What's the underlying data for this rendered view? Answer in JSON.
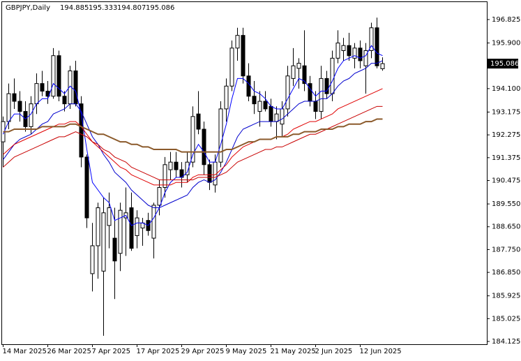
{
  "chart_data": {
    "type": "candlestick",
    "title": "GBPJPY,Daily",
    "categories": [
      "14 Mar 2025",
      null,
      null,
      null,
      null,
      null,
      null,
      null,
      "26 Mar 2025",
      null,
      null,
      null,
      null,
      null,
      null,
      null,
      "7 Apr 2025",
      null,
      null,
      null,
      null,
      null,
      null,
      null,
      "17 Apr 2025",
      null,
      null,
      null,
      null,
      null,
      null,
      null,
      "29 Apr 2025",
      null,
      null,
      null,
      null,
      null,
      null,
      null,
      "9 May 2025",
      null,
      null,
      null,
      null,
      null,
      null,
      null,
      "21 May 2025",
      null,
      null,
      null,
      null,
      null,
      null,
      null,
      "2 Jun 2025",
      null,
      null,
      null,
      null,
      null,
      null,
      null,
      "12 Jun 2025",
      null,
      null,
      null,
      null
    ],
    "open": [
      192.0,
      192.8,
      193.9,
      193.6,
      193.2,
      192.6,
      193.5,
      194.3,
      194.0,
      193.8,
      195.4,
      193.8,
      193.5,
      194.8,
      193.5,
      191.4,
      186.8,
      187.9,
      186.9,
      188.7,
      188.2,
      187.6,
      189.0,
      189.4,
      188.3,
      188.6,
      188.9,
      188.2,
      189.5,
      190.2,
      190.9,
      191.2,
      190.9,
      190.7,
      191.2,
      193.1,
      192.5,
      191.1,
      190.3,
      191.2,
      193.3,
      194.2,
      195.7,
      196.2,
      194.6,
      193.8,
      193.2,
      193.6,
      193.4,
      192.8,
      192.7,
      193.3,
      194.5,
      194.9,
      195.0,
      194.3,
      193.6,
      193.2,
      194.5,
      193.9,
      195.3,
      195.6,
      195.8,
      195.3,
      195.7,
      195.0,
      195.6,
      196.5,
      194.885
    ],
    "high": [
      193.0,
      194.3,
      194.5,
      194.0,
      193.6,
      193.8,
      194.7,
      194.8,
      194.4,
      195.7,
      195.6,
      194.0,
      195.0,
      195.2,
      193.8,
      191.5,
      188.8,
      189.6,
      189.8,
      190.0,
      189.4,
      189.6,
      190.2,
      190.0,
      189.3,
      189.0,
      189.2,
      189.6,
      190.5,
      191.4,
      191.6,
      191.6,
      191.2,
      191.6,
      193.4,
      194.0,
      192.8,
      191.3,
      191.5,
      193.6,
      194.5,
      196.0,
      196.5,
      196.5,
      195.1,
      194.4,
      194.0,
      194.0,
      193.7,
      193.4,
      193.6,
      195.0,
      195.7,
      195.3,
      196.4,
      194.6,
      194.0,
      195.0,
      194.8,
      195.6,
      196.4,
      196.1,
      196.3,
      195.9,
      196.0,
      195.9,
      196.7,
      196.9,
      195.333
    ],
    "low": [
      191.0,
      192.5,
      193.3,
      192.8,
      192.4,
      192.3,
      193.1,
      193.8,
      193.5,
      193.7,
      193.6,
      193.2,
      193.3,
      193.4,
      191.0,
      188.6,
      186.1,
      186.6,
      184.35,
      187.8,
      185.8,
      186.9,
      187.5,
      187.7,
      187.8,
      187.9,
      188.3,
      187.4,
      189.1,
      189.8,
      190.5,
      190.6,
      190.2,
      190.4,
      191.0,
      192.3,
      190.7,
      190.1,
      190.0,
      191.0,
      192.8,
      194.0,
      195.2,
      194.3,
      193.6,
      193.1,
      192.6,
      193.2,
      192.6,
      192.1,
      192.2,
      193.0,
      194.2,
      194.1,
      194.0,
      193.4,
      192.9,
      192.9,
      193.7,
      193.6,
      195.1,
      195.2,
      195.2,
      194.9,
      194.9,
      193.9,
      195.3,
      194.9,
      194.807
    ],
    "close": [
      192.8,
      193.9,
      193.6,
      193.2,
      192.6,
      193.5,
      194.3,
      194.0,
      193.8,
      195.4,
      193.8,
      193.5,
      194.8,
      193.5,
      191.4,
      189.0,
      187.9,
      189.4,
      189.2,
      189.4,
      187.3,
      189.3,
      189.2,
      187.8,
      189.0,
      188.8,
      188.5,
      189.5,
      190.2,
      191.1,
      191.2,
      190.9,
      190.6,
      191.2,
      193.0,
      192.5,
      191.1,
      190.4,
      191.2,
      193.3,
      194.2,
      195.7,
      196.2,
      194.6,
      193.8,
      193.5,
      193.6,
      193.3,
      192.8,
      193.1,
      193.3,
      194.6,
      195.0,
      195.1,
      194.3,
      193.6,
      193.2,
      194.5,
      193.9,
      195.3,
      195.9,
      195.8,
      195.4,
      195.7,
      195.2,
      195.6,
      196.5,
      195.0,
      195.086
    ],
    "up_color": "#ffffff",
    "down_color": "#000000",
    "lines": [
      {
        "color": "#0000ff",
        "values": [
          192.3,
          192.8,
          193.1,
          193.1,
          192.9,
          193.1,
          193.5,
          193.7,
          193.7,
          194.3,
          194.1,
          193.9,
          194.2,
          194.0,
          193.1,
          191.7,
          190.4,
          190.1,
          189.8,
          189.6,
          188.9,
          189.0,
          189.1,
          188.7,
          188.8,
          188.8,
          188.7,
          189.0,
          189.4,
          190.0,
          190.4,
          190.6,
          190.6,
          190.8,
          191.5,
          191.9,
          191.6,
          191.2,
          191.2,
          191.9,
          192.7,
          193.7,
          194.5,
          194.5,
          194.3,
          194.0,
          193.9,
          193.7,
          193.4,
          193.3,
          193.3,
          193.7,
          194.1,
          194.5,
          194.4,
          194.1,
          193.8,
          194.0,
          194.0,
          194.4,
          194.9,
          195.2,
          195.3,
          195.4,
          195.3,
          195.4,
          195.8,
          195.5,
          195.4
        ]
      },
      {
        "color": "#0000cd",
        "values": [
          191.3,
          191.6,
          191.9,
          192.1,
          192.2,
          192.3,
          192.5,
          192.7,
          192.8,
          193.1,
          193.2,
          193.3,
          193.5,
          193.5,
          193.2,
          192.7,
          192.2,
          191.9,
          191.5,
          191.2,
          190.8,
          190.6,
          190.4,
          190.1,
          189.9,
          189.7,
          189.5,
          189.4,
          189.4,
          189.5,
          189.6,
          189.7,
          189.8,
          189.9,
          190.2,
          190.4,
          190.5,
          190.4,
          190.5,
          190.8,
          191.2,
          191.7,
          192.2,
          192.5,
          192.6,
          192.7,
          192.8,
          192.8,
          192.8,
          192.8,
          192.9,
          193.1,
          193.3,
          193.5,
          193.6,
          193.6,
          193.6,
          193.7,
          193.7,
          193.9,
          194.2,
          194.4,
          194.5,
          194.7,
          194.8,
          194.9,
          195.1,
          195.1,
          195.2
        ]
      },
      {
        "color": "#e00000",
        "values": [
          191.5,
          191.7,
          191.9,
          192.0,
          192.1,
          192.2,
          192.3,
          192.4,
          192.5,
          192.6,
          192.7,
          192.7,
          192.8,
          192.8,
          192.6,
          192.3,
          192.0,
          191.8,
          191.6,
          191.4,
          191.2,
          191.0,
          190.9,
          190.7,
          190.6,
          190.5,
          190.4,
          190.3,
          190.3,
          190.3,
          190.3,
          190.4,
          190.4,
          190.4,
          190.6,
          190.7,
          190.7,
          190.7,
          190.7,
          190.9,
          191.1,
          191.4,
          191.6,
          191.8,
          191.9,
          192.0,
          192.1,
          192.1,
          192.1,
          192.2,
          192.2,
          192.3,
          192.5,
          192.6,
          192.7,
          192.8,
          192.8,
          192.9,
          193.0,
          193.1,
          193.3,
          193.4,
          193.5,
          193.6,
          193.7,
          193.8,
          193.9,
          194.0,
          194.1
        ]
      },
      {
        "color": "#c80000",
        "values": [
          191.0,
          191.2,
          191.4,
          191.5,
          191.6,
          191.7,
          191.8,
          191.9,
          192.0,
          192.1,
          192.2,
          192.2,
          192.3,
          192.4,
          192.3,
          192.2,
          192.0,
          191.9,
          191.7,
          191.6,
          191.4,
          191.3,
          191.2,
          191.0,
          190.9,
          190.8,
          190.7,
          190.6,
          190.5,
          190.5,
          190.5,
          190.5,
          190.5,
          190.5,
          190.5,
          190.6,
          190.6,
          190.6,
          190.6,
          190.7,
          190.8,
          191.0,
          191.2,
          191.3,
          191.4,
          191.5,
          191.6,
          191.7,
          191.7,
          191.8,
          191.8,
          191.9,
          192.0,
          192.1,
          192.2,
          192.3,
          192.3,
          192.4,
          192.5,
          192.6,
          192.7,
          192.8,
          192.9,
          193.0,
          193.1,
          193.2,
          193.3,
          193.4,
          193.4
        ]
      },
      {
        "color": "#8b5a2b",
        "values": [
          192.4,
          192.4,
          192.5,
          192.5,
          192.5,
          192.5,
          192.5,
          192.6,
          192.6,
          192.6,
          192.6,
          192.6,
          192.7,
          192.7,
          192.6,
          192.5,
          192.4,
          192.3,
          192.3,
          192.2,
          192.1,
          192.0,
          192.0,
          191.9,
          191.9,
          191.8,
          191.8,
          191.7,
          191.7,
          191.7,
          191.7,
          191.7,
          191.6,
          191.6,
          191.6,
          191.6,
          191.6,
          191.6,
          191.6,
          191.6,
          191.7,
          191.7,
          191.8,
          191.9,
          192.0,
          192.0,
          192.1,
          192.1,
          192.1,
          192.2,
          192.2,
          192.2,
          192.3,
          192.3,
          192.4,
          192.4,
          192.4,
          192.5,
          192.5,
          192.5,
          192.6,
          192.6,
          192.7,
          192.7,
          192.7,
          192.8,
          192.8,
          192.9,
          192.9
        ]
      }
    ],
    "ylim": [
      184.015,
      197.541
    ],
    "yticks": [
      196.825,
      {
        "value": 195.9,
        "label": "195.900"
      },
      {
        "value": 194.1,
        "label": "194.100"
      },
      193.175,
      192.275,
      191.375,
      190.475,
      {
        "value": 189.55,
        "label": "189.550"
      },
      {
        "value": 188.65,
        "label": "188.650"
      },
      {
        "value": 187.75,
        "label": "187.750"
      },
      {
        "value": 186.85,
        "label": "186.850"
      },
      185.925,
      185.025,
      184.125
    ],
    "grid": false
  }
}
